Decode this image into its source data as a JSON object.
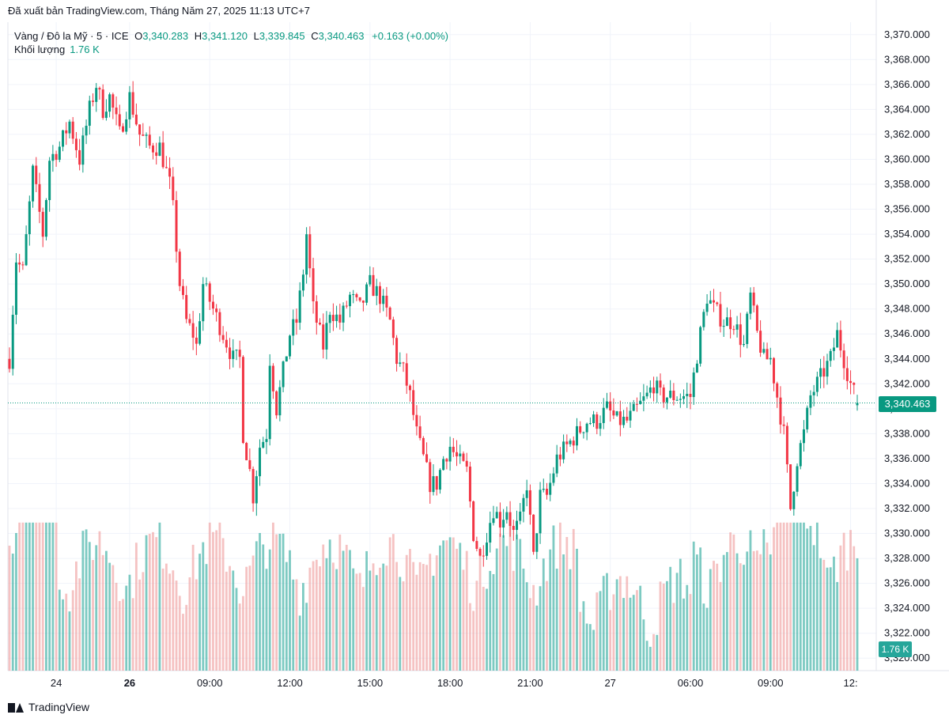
{
  "header": {
    "published": "Đã xuất bản TradingView.com, Tháng Năm 27, 2025 11:13 UTC+7"
  },
  "legend": {
    "symbol": "Vàng / Đô la Mỹ · 5 · ICE",
    "o_label": "O",
    "o_value": "3,340.283",
    "h_label": "H",
    "h_value": "3,341.120",
    "l_label": "L",
    "l_value": "3,339.845",
    "c_label": "C",
    "c_value": "3,340.463",
    "change": "+0.163 (+0.00%)",
    "volume_label": "Khối lượng",
    "volume_value": "1.76 K"
  },
  "price_tag": "3,340.463",
  "volume_tag": "1.76 K",
  "footer": {
    "brand": "TradingView"
  },
  "colors": {
    "up": "#089981",
    "down": "#f23645",
    "up_vol": "#26a69a",
    "down_vol": "#ef9a9a",
    "grid": "#f0f3fa"
  },
  "chart_data": {
    "type": "candlestick",
    "ylim": [
      3319,
      3371
    ],
    "y_ticks": [
      "3,370.000",
      "3,368.000",
      "3,366.000",
      "3,364.000",
      "3,362.000",
      "3,360.000",
      "3,358.000",
      "3,356.000",
      "3,354.000",
      "3,352.000",
      "3,350.000",
      "3,348.000",
      "3,346.000",
      "3,344.000",
      "3,342.000",
      "3,340.000",
      "3,338.000",
      "3,336.000",
      "3,334.000",
      "3,332.000",
      "3,330.000",
      "3,328.000",
      "3,326.000",
      "3,324.000",
      "3,322.000",
      "3,320.000"
    ],
    "x_ticks": [
      {
        "label": "24",
        "i": 14
      },
      {
        "label": "26",
        "i": 36
      },
      {
        "label": "09:00",
        "i": 60
      },
      {
        "label": "12:00",
        "i": 84
      },
      {
        "label": "15:00",
        "i": 108
      },
      {
        "label": "18:00",
        "i": 132
      },
      {
        "label": "21:00",
        "i": 156
      },
      {
        "label": "27",
        "i": 180
      },
      {
        "label": "06:00",
        "i": 204
      },
      {
        "label": "09:00",
        "i": 228
      },
      {
        "label": "12:",
        "i": 252
      }
    ],
    "close_path": [
      [
        0,
        3344
      ],
      [
        2,
        3352
      ],
      [
        4,
        3351
      ],
      [
        7,
        3359
      ],
      [
        10,
        3354
      ],
      [
        12,
        3360
      ],
      [
        15,
        3361
      ],
      [
        18,
        3363
      ],
      [
        21,
        3360
      ],
      [
        24,
        3364
      ],
      [
        26,
        3366
      ],
      [
        28,
        3364
      ],
      [
        30,
        3365
      ],
      [
        33,
        3362
      ],
      [
        36,
        3365
      ],
      [
        39,
        3362
      ],
      [
        42,
        3361
      ],
      [
        45,
        3361
      ],
      [
        48,
        3358
      ],
      [
        49,
        3356
      ],
      [
        51,
        3350
      ],
      [
        53,
        3347
      ],
      [
        55,
        3346
      ],
      [
        56,
        3345
      ],
      [
        58,
        3350
      ],
      [
        61,
        3348
      ],
      [
        64,
        3346
      ],
      [
        67,
        3344
      ],
      [
        69,
        3344
      ],
      [
        70,
        3338
      ],
      [
        72,
        3335
      ],
      [
        73,
        3333
      ],
      [
        75,
        3337
      ],
      [
        77,
        3338
      ],
      [
        78,
        3344
      ],
      [
        80,
        3340
      ],
      [
        82,
        3343
      ],
      [
        84,
        3346
      ],
      [
        86,
        3347
      ],
      [
        88,
        3351
      ],
      [
        89,
        3354
      ],
      [
        91,
        3348
      ],
      [
        94,
        3345
      ],
      [
        96,
        3348
      ],
      [
        99,
        3347
      ],
      [
        102,
        3349
      ],
      [
        105,
        3348
      ],
      [
        108,
        3350
      ],
      [
        111,
        3349
      ],
      [
        114,
        3347
      ],
      [
        116,
        3344
      ],
      [
        118,
        3343
      ],
      [
        120,
        3341
      ],
      [
        122,
        3338
      ],
      [
        124,
        3336
      ],
      [
        126,
        3334
      ],
      [
        128,
        3334
      ],
      [
        130,
        3336
      ],
      [
        132,
        3337
      ],
      [
        134,
        3336
      ],
      [
        137,
        3335
      ],
      [
        139,
        3330
      ],
      [
        141,
        3328
      ],
      [
        143,
        3330
      ],
      [
        145,
        3332
      ],
      [
        147,
        3331
      ],
      [
        149,
        3332
      ],
      [
        151,
        3330
      ],
      [
        153,
        3331
      ],
      [
        155,
        3334
      ],
      [
        157,
        3328
      ],
      [
        159,
        3333
      ],
      [
        161,
        3333
      ],
      [
        164,
        3336
      ],
      [
        167,
        3337
      ],
      [
        170,
        3338
      ],
      [
        173,
        3339
      ],
      [
        176,
        3339
      ],
      [
        179,
        3340
      ],
      [
        182,
        3339
      ],
      [
        185,
        3339
      ],
      [
        188,
        3340
      ],
      [
        191,
        3341
      ],
      [
        193,
        3342
      ],
      [
        195,
        3341
      ],
      [
        198,
        3341
      ],
      [
        201,
        3341
      ],
      [
        204,
        3341
      ],
      [
        207,
        3346
      ],
      [
        209,
        3349
      ],
      [
        211,
        3348
      ],
      [
        214,
        3347
      ],
      [
        217,
        3347
      ],
      [
        220,
        3345
      ],
      [
        222,
        3349
      ],
      [
        224,
        3346
      ],
      [
        226,
        3344
      ],
      [
        228,
        3344
      ],
      [
        230,
        3341
      ],
      [
        232,
        3338
      ],
      [
        234,
        3332
      ],
      [
        236,
        3336
      ],
      [
        238,
        3338
      ],
      [
        240,
        3341
      ],
      [
        242,
        3342
      ],
      [
        244,
        3343
      ],
      [
        246,
        3344
      ],
      [
        248,
        3346
      ],
      [
        250,
        3344
      ],
      [
        252,
        3342
      ],
      [
        254,
        3340.5
      ]
    ],
    "n_bars": 255,
    "last": {
      "open": 3340.283,
      "high": 3341.12,
      "low": 3339.845,
      "close": 3340.463,
      "volume": 1760
    }
  }
}
